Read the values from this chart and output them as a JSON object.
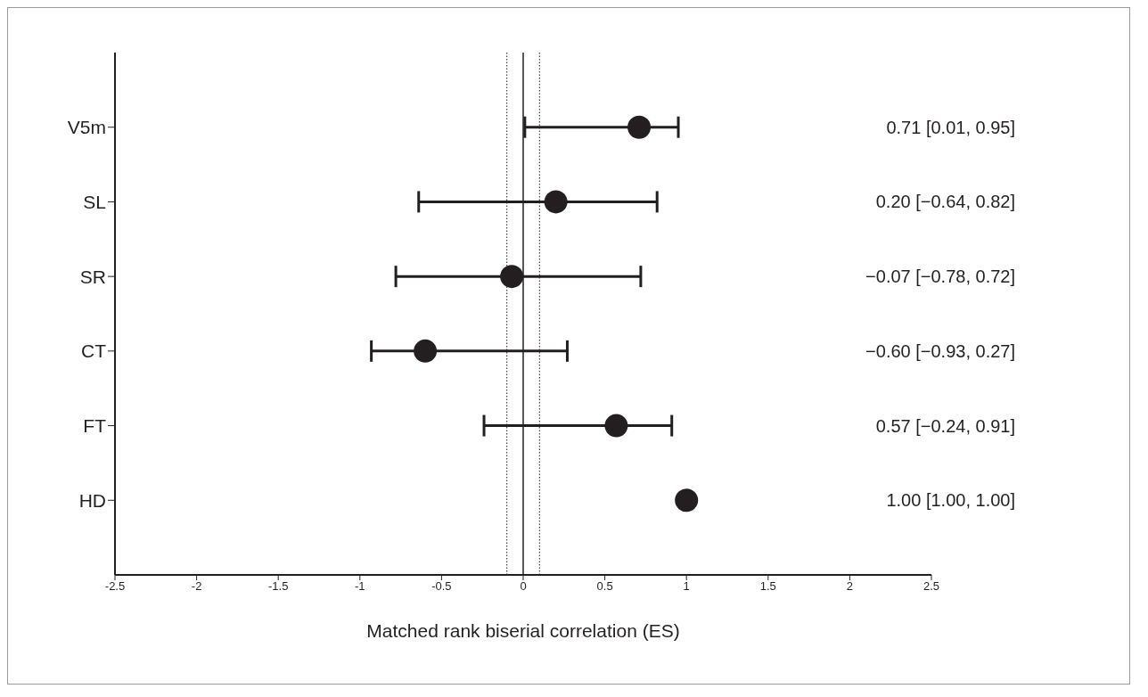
{
  "chart_data": {
    "type": "scatter",
    "orientation": "horizontal",
    "xlabel": "Matched rank biserial correlation (ES)",
    "categories": [
      "V5m",
      "SL",
      "SR",
      "CT",
      "FT",
      "HD"
    ],
    "values": [
      0.71,
      0.2,
      -0.07,
      -0.6,
      0.57,
      1.0
    ],
    "errors": [
      [
        0.01,
        0.95
      ],
      [
        -0.64,
        0.82
      ],
      [
        -0.78,
        0.72
      ],
      [
        -0.93,
        0.27
      ],
      [
        -0.24,
        0.91
      ],
      [
        1.0,
        1.0
      ]
    ],
    "annotations": [
      "0.71 [0.01, 0.95]",
      "0.20 [−0.64, 0.82]",
      "−0.07 [−0.78, 0.72]",
      "−0.60 [−0.93, 0.27]",
      "0.57 [−0.24, 0.91]",
      "1.00 [1.00, 1.00]"
    ],
    "color": "#231f20",
    "marker": "circle",
    "grid": false,
    "legend": false,
    "xlim": [
      -2.5,
      2.5
    ],
    "xticks": [
      -2.5,
      -2,
      -1.5,
      -1,
      -0.5,
      0,
      0.5,
      1,
      1.5,
      2,
      2.5
    ],
    "ref_lines": [
      {
        "axis": "x",
        "value": 0,
        "line_style": "solid"
      },
      {
        "axis": "x",
        "value": -0.1,
        "line_style": "dotted"
      },
      {
        "axis": "x",
        "value": 0.1,
        "line_style": "dotted"
      }
    ]
  }
}
